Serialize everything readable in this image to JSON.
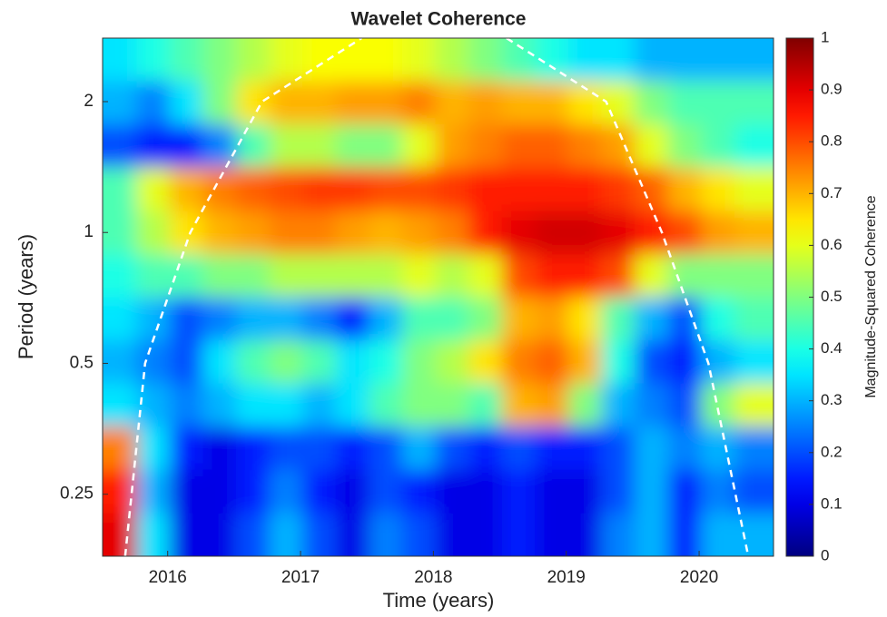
{
  "chart_data": {
    "type": "heatmap",
    "title": "Wavelet Coherence",
    "xlabel": "Time (years)",
    "ylabel": "Period (years)",
    "colorbar_label": "Magnitude-Squared Coherence",
    "colormap": "jet",
    "xlim": [
      2015.51,
      2020.56
    ],
    "xticks": [
      2016,
      2017,
      2018,
      2019,
      2020
    ],
    "ylim": [
      0.18,
      2.8
    ],
    "yscale": "log",
    "yticks": [
      0.25,
      0.5,
      1,
      2
    ],
    "clim": [
      0,
      1
    ],
    "cticks": [
      0,
      0.1,
      0.2,
      0.3,
      0.4,
      0.5,
      0.6,
      0.7,
      0.8,
      0.9,
      1
    ],
    "x": [
      2015.64,
      2015.89,
      2016.14,
      2016.39,
      2016.64,
      2016.89,
      2017.14,
      2017.39,
      2017.64,
      2017.89,
      2018.14,
      2018.39,
      2018.64,
      2018.89,
      2019.14,
      2019.39,
      2019.64,
      2019.89,
      2020.14,
      2020.39
    ],
    "y": [
      0.202,
      0.254,
      0.32,
      0.402,
      0.505,
      0.635,
      0.798,
      1.0,
      1.26,
      1.59,
      1.99,
      2.51
    ],
    "z": [
      [
        0.9,
        0.35,
        0.1,
        0.1,
        0.2,
        0.3,
        0.2,
        0.1,
        0.25,
        0.2,
        0.1,
        0.1,
        0.15,
        0.1,
        0.1,
        0.25,
        0.3,
        0.15,
        0.3,
        0.3
      ],
      [
        0.85,
        0.3,
        0.1,
        0.1,
        0.15,
        0.25,
        0.15,
        0.1,
        0.2,
        0.15,
        0.1,
        0.1,
        0.15,
        0.1,
        0.1,
        0.2,
        0.3,
        0.15,
        0.25,
        0.2
      ],
      [
        0.75,
        0.35,
        0.15,
        0.1,
        0.15,
        0.2,
        0.2,
        0.15,
        0.2,
        0.3,
        0.2,
        0.15,
        0.2,
        0.15,
        0.15,
        0.2,
        0.3,
        0.25,
        0.3,
        0.25
      ],
      [
        0.35,
        0.3,
        0.25,
        0.3,
        0.35,
        0.35,
        0.3,
        0.35,
        0.45,
        0.5,
        0.5,
        0.45,
        0.7,
        0.72,
        0.5,
        0.3,
        0.25,
        0.2,
        0.5,
        0.6
      ],
      [
        0.3,
        0.25,
        0.2,
        0.35,
        0.45,
        0.5,
        0.45,
        0.35,
        0.4,
        0.5,
        0.55,
        0.65,
        0.75,
        0.78,
        0.7,
        0.4,
        0.2,
        0.15,
        0.3,
        0.35
      ],
      [
        0.35,
        0.3,
        0.2,
        0.25,
        0.3,
        0.3,
        0.25,
        0.15,
        0.3,
        0.45,
        0.45,
        0.5,
        0.7,
        0.72,
        0.65,
        0.45,
        0.3,
        0.2,
        0.4,
        0.45
      ],
      [
        0.4,
        0.45,
        0.45,
        0.5,
        0.5,
        0.55,
        0.55,
        0.55,
        0.55,
        0.6,
        0.55,
        0.6,
        0.8,
        0.85,
        0.85,
        0.8,
        0.6,
        0.5,
        0.5,
        0.5
      ],
      [
        0.45,
        0.55,
        0.65,
        0.7,
        0.72,
        0.75,
        0.75,
        0.72,
        0.7,
        0.72,
        0.75,
        0.85,
        0.9,
        0.92,
        0.92,
        0.9,
        0.85,
        0.8,
        0.72,
        0.7
      ],
      [
        0.45,
        0.6,
        0.7,
        0.75,
        0.78,
        0.8,
        0.82,
        0.82,
        0.8,
        0.8,
        0.82,
        0.85,
        0.85,
        0.85,
        0.85,
        0.82,
        0.78,
        0.7,
        0.65,
        0.6
      ],
      [
        0.2,
        0.15,
        0.15,
        0.25,
        0.45,
        0.55,
        0.55,
        0.5,
        0.5,
        0.6,
        0.72,
        0.75,
        0.78,
        0.78,
        0.75,
        0.72,
        0.6,
        0.5,
        0.45,
        0.4
      ],
      [
        0.3,
        0.25,
        0.35,
        0.5,
        0.65,
        0.7,
        0.7,
        0.72,
        0.72,
        0.75,
        0.7,
        0.72,
        0.7,
        0.7,
        0.65,
        0.6,
        0.5,
        0.45,
        0.45,
        0.45
      ],
      [
        0.35,
        0.4,
        0.45,
        0.5,
        0.55,
        0.6,
        0.62,
        0.62,
        0.62,
        0.6,
        0.55,
        0.5,
        0.45,
        0.4,
        0.35,
        0.35,
        0.3,
        0.3,
        0.3,
        0.3
      ]
    ],
    "coi": {
      "color": "#ffffff",
      "x": [
        2015.68,
        2015.83,
        2016.17,
        2016.71,
        2017.46,
        null,
        2018.55,
        2019.3,
        2019.72,
        2020.07,
        2020.37
      ],
      "y": [
        0.18,
        0.5,
        1,
        2,
        2.8,
        null,
        2.8,
        2,
        1,
        0.5,
        0.18
      ]
    }
  }
}
